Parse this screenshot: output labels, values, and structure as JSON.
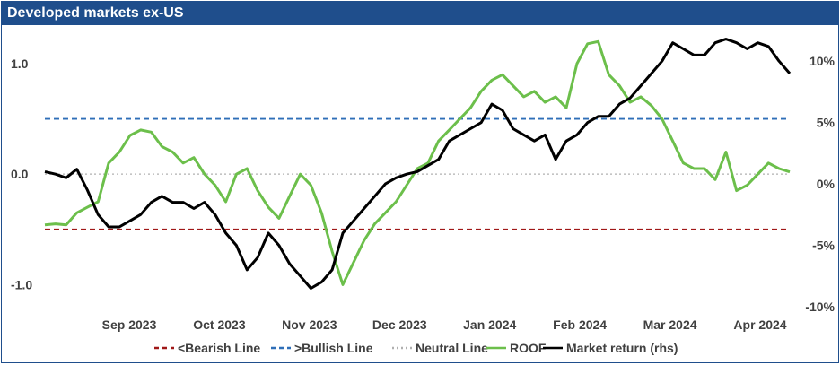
{
  "chart_data": {
    "type": "line",
    "title": "Developed markets ex-US",
    "x_tick_labels": [
      "Sep 2023",
      "Oct 2023",
      "Nov 2023",
      "Dec 2023",
      "Jan 2024",
      "Feb 2024",
      "Mar 2024",
      "Apr 2024"
    ],
    "left_axis": {
      "ticks": [
        "1.0",
        "0.0",
        "-1.0"
      ],
      "range": [
        -1.2,
        1.3
      ]
    },
    "right_axis": {
      "ticks": [
        "10%",
        "5%",
        "0%",
        "-5%",
        "-10%"
      ],
      "range": [
        -10,
        12.5
      ]
    },
    "reference_lines": [
      {
        "name": "<Bearish Line",
        "value": -0.5,
        "color": "#a01818"
      },
      {
        "name": ">Bullish Line",
        "value": 0.5,
        "color": "#2f6fb8"
      },
      {
        "name": "Neutral Line",
        "value": 0.0,
        "color": "#b0b0b0"
      }
    ],
    "series": [
      {
        "name": "ROOF",
        "color": "#6cbf4b",
        "axis": "left",
        "values": [
          -0.46,
          -0.45,
          -0.46,
          -0.35,
          -0.3,
          -0.25,
          0.1,
          0.2,
          0.35,
          0.4,
          0.38,
          0.25,
          0.2,
          0.1,
          0.15,
          0.0,
          -0.1,
          -0.25,
          0.0,
          0.05,
          -0.15,
          -0.3,
          -0.4,
          -0.2,
          0.0,
          -0.1,
          -0.35,
          -0.7,
          -1.0,
          -0.8,
          -0.6,
          -0.45,
          -0.35,
          -0.25,
          -0.1,
          0.05,
          0.1,
          0.3,
          0.4,
          0.5,
          0.6,
          0.75,
          0.85,
          0.9,
          0.8,
          0.7,
          0.75,
          0.65,
          0.7,
          0.6,
          1.0,
          1.18,
          1.2,
          0.9,
          0.8,
          0.65,
          0.7,
          0.62,
          0.5,
          0.3,
          0.1,
          0.05,
          0.05,
          -0.05,
          0.2,
          -0.15,
          -0.1,
          0.0,
          0.1,
          0.05,
          0.02
        ],
        "notes": "series sampled at 71 evenly spaced points from late Aug 2023 to Apr 2024"
      },
      {
        "name": "Market return (rhs)",
        "color": "#000000",
        "axis": "right",
        "values": [
          1.0,
          0.8,
          0.5,
          1.2,
          -0.5,
          -2.5,
          -3.5,
          -3.5,
          -3.0,
          -2.5,
          -1.5,
          -1.0,
          -1.5,
          -1.5,
          -2.0,
          -1.5,
          -2.5,
          -4.0,
          -5.0,
          -7.0,
          -6.0,
          -4.0,
          -5.0,
          -6.5,
          -7.5,
          -8.5,
          -8.0,
          -7.0,
          -4.0,
          -3.0,
          -2.0,
          -1.0,
          0.0,
          0.5,
          0.8,
          1.0,
          1.5,
          2.0,
          3.5,
          4.0,
          4.5,
          5.0,
          6.5,
          6.0,
          4.5,
          4.0,
          3.5,
          4.0,
          2.0,
          3.5,
          4.0,
          5.0,
          5.5,
          5.5,
          6.5,
          7.0,
          8.0,
          9.0,
          10.0,
          11.5,
          11.0,
          10.5,
          10.5,
          11.5,
          11.8,
          11.5,
          11.0,
          11.5,
          11.2,
          10.0,
          9.0
        ],
        "notes": "series sampled at 71 evenly spaced points from late Aug 2023 to Apr 2024"
      }
    ],
    "legend": {
      "placement": "bottom",
      "entries": [
        {
          "label": "<Bearish Line",
          "color": "#a01818",
          "style": "dashed"
        },
        {
          "label": ">Bullish Line",
          "color": "#2f6fb8",
          "style": "dashed"
        },
        {
          "label": "Neutral Line",
          "color": "#b0b0b0",
          "style": "dotted"
        },
        {
          "label": "ROOF",
          "color": "#6cbf4b",
          "style": "solid"
        },
        {
          "label": "Market return (rhs)",
          "color": "#000000",
          "style": "solid"
        }
      ]
    }
  }
}
